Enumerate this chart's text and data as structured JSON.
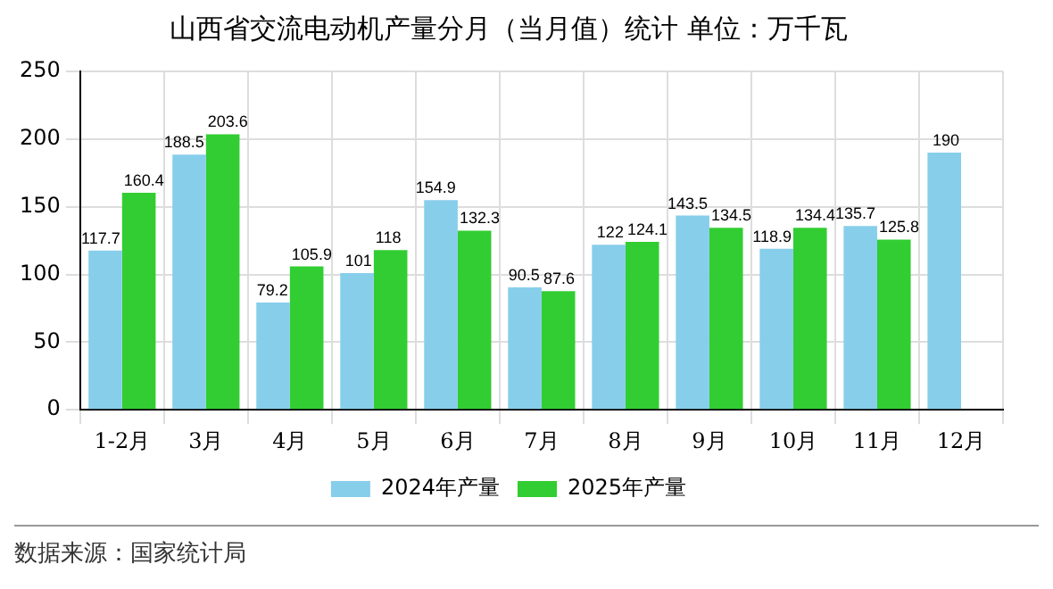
{
  "chart_data": {
    "type": "bar",
    "title": "山西省交流电动机产量分月（当月值）统计 单位：万千瓦",
    "categories": [
      "1-2月",
      "3月",
      "4月",
      "5月",
      "6月",
      "7月",
      "8月",
      "9月",
      "10月",
      "11月",
      "12月"
    ],
    "series": [
      {
        "name": "2024年产量",
        "color": "#87ceeb",
        "values": [
          117.7,
          188.5,
          79.2,
          101,
          154.9,
          90.5,
          122,
          143.5,
          118.9,
          135.7,
          190
        ]
      },
      {
        "name": "2025年产量",
        "color": "#32cd32",
        "values": [
          160.4,
          203.6,
          105.9,
          118,
          132.3,
          87.6,
          124.1,
          134.5,
          134.4,
          125.8,
          null
        ]
      }
    ],
    "ylim": [
      0,
      250
    ],
    "yticks": [
      0,
      50,
      100,
      150,
      200,
      250
    ],
    "grid": true,
    "legend": "bottom",
    "data_labels": true,
    "annotations": [
      "数据来源：国家统计局"
    ]
  }
}
